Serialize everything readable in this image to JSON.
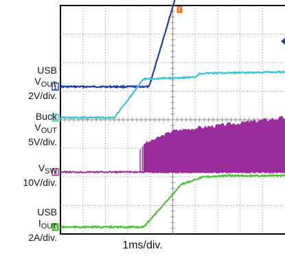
{
  "labels": {
    "usb_vout": {
      "l1": "USB",
      "main": "V",
      "sub": "OUT",
      "scale": "2V/div."
    },
    "buck_vout": {
      "l1": "Buck",
      "main": "V",
      "sub": "OUT",
      "scale": "5V/div."
    },
    "vsw": {
      "main": "V",
      "sub": "SW",
      "scale": "10V/div."
    },
    "usb_iout": {
      "l1": "USB",
      "main": "I",
      "sub": "OUT",
      "scale": "2A/div."
    },
    "xlabel": "1ms/div."
  },
  "colors": {
    "ch1": "#1f3d9c",
    "ch2": "#3fc3cf",
    "ch3": "#9a2c9c",
    "ch4": "#4fc03c",
    "trigger": "#e8741c",
    "grid": "#8a8a8a"
  },
  "chart_data": {
    "type": "line",
    "title": "",
    "xlabel": "1ms/div.",
    "x_range_div": [
      -5,
      5
    ],
    "y_range_div": [
      -4,
      4
    ],
    "grid": true,
    "trigger_marker": "T",
    "series": [
      {
        "name": "USB VOUT",
        "channel": "1",
        "scale": "2V/div.",
        "color": "#1f3d9c",
        "points": [
          [
            -5,
            0
          ],
          [
            -1.05,
            0
          ],
          [
            0.3,
            3.6
          ],
          [
            5,
            3.6
          ]
        ]
      },
      {
        "name": "Buck VOUT",
        "channel": "2",
        "scale": "5V/div.",
        "color": "#3fc3cf",
        "points": [
          [
            -5,
            0
          ],
          [
            -2.6,
            0
          ],
          [
            -1.3,
            1.35
          ],
          [
            1.0,
            1.42
          ],
          [
            1.2,
            1.55
          ],
          [
            5,
            1.6
          ]
        ]
      },
      {
        "name": "VSW",
        "channel": "3",
        "scale": "10V/div.",
        "color": "#9a2c9c",
        "baseline": 0,
        "envelope_start": -1.3,
        "envelope_top": [
          [
            -1.3,
            1.0
          ],
          [
            0,
            1.5
          ],
          [
            5,
            1.98
          ]
        ]
      },
      {
        "name": "USB IOUT",
        "channel": "4",
        "scale": "2A/div.",
        "color": "#4fc03c",
        "points": [
          [
            -5,
            0
          ],
          [
            -1.3,
            0
          ],
          [
            0.4,
            1.5
          ],
          [
            1.3,
            1.75
          ],
          [
            2.4,
            1.8
          ],
          [
            5,
            1.8
          ]
        ]
      }
    ]
  }
}
